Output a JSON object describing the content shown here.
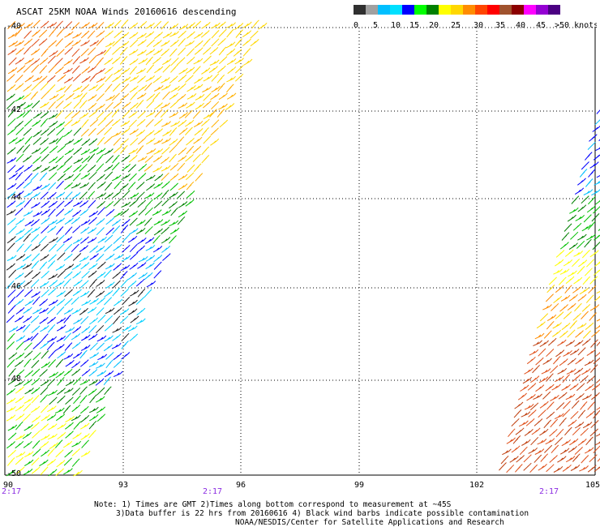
{
  "title": "ASCAT 25KM NOAA Winds 20160616 descending",
  "legend": {
    "colors": [
      "#303030",
      "#a0a0a0",
      "#00bfff",
      "#00e0ff",
      "#0000ff",
      "#00ff00",
      "#008000",
      "#ffff00",
      "#ffd700",
      "#ff8c00",
      "#ff4500",
      "#ff0000",
      "#a0522d",
      "#8b0000",
      "#ff00ff",
      "#9400d3",
      "#4b0082"
    ],
    "labels": [
      "0",
      "5",
      "10",
      "15",
      "20",
      "25",
      "30",
      "35",
      "40",
      "45",
      ">50 knots"
    ]
  },
  "map": {
    "lon_ticks": [
      "90",
      "93",
      "96",
      "99",
      "102",
      "105"
    ],
    "lat_ticks": [
      "-40",
      "-42",
      "-44",
      "-46",
      "-48",
      "-50"
    ],
    "pass_times": [
      "2:17",
      "2:17",
      "2:17"
    ]
  },
  "notes": {
    "line1": "Note: 1) Times are GMT 2)Times along bottom correspond to measurement at ~45S",
    "line2": "3)Data buffer is 22 hrs from 20160616 4) Black wind barbs indicate possible contamination",
    "line3": "NOAA/NESDIS/Center for Satellite Applications and Research"
  },
  "chart_data": {
    "type": "wind-barb-map",
    "x_range": [
      90,
      105
    ],
    "y_range": [
      -50,
      -40
    ],
    "xlabel": "",
    "ylabel": "",
    "grid": true,
    "swaths": [
      {
        "side": "west",
        "lon_span": [
          90,
          96.5
        ],
        "lat_span": [
          -50,
          -40
        ],
        "speed_knots_range": [
          0,
          40
        ]
      },
      {
        "side": "east",
        "lon_span": [
          102.5,
          105
        ],
        "lat_span": [
          -50,
          -42
        ],
        "speed_knots_range": [
          15,
          40
        ]
      }
    ]
  }
}
